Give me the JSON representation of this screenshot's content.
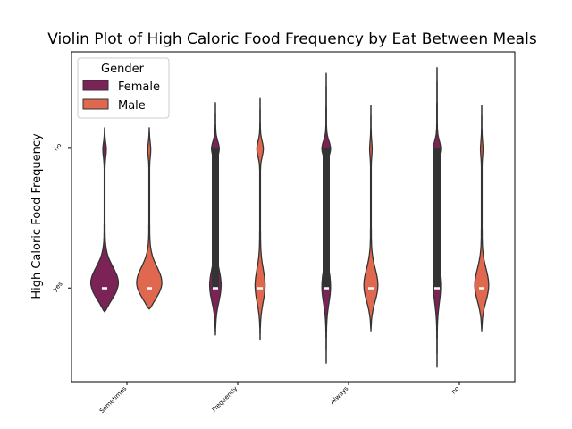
{
  "chart_data": {
    "type": "violin",
    "title": "Violin Plot of High Caloric Food Frequency by Eat Between Meals",
    "xlabel": "",
    "ylabel": "High Caloric Food Frequency",
    "categories": [
      "Sometimes",
      "Frequently",
      "Always",
      "no"
    ],
    "y_categories": [
      "no",
      "yes"
    ],
    "legend": {
      "title": "Gender",
      "placement": "top-left",
      "entries": [
        "Female",
        "Male"
      ]
    },
    "colors": {
      "Female": "#7b2357",
      "Male": "#e0684e",
      "edge": "#333333"
    },
    "series": [
      {
        "name": "Female",
        "violins": [
          {
            "category": "Sometimes",
            "y_min": -0.17,
            "y_max": 1.15,
            "median": 0,
            "q1": 0,
            "q3": 0,
            "peak_no": 0.12,
            "peak_yes": 1.0
          },
          {
            "category": "Frequently",
            "y_min": -0.34,
            "y_max": 1.33,
            "median": 0,
            "q1": 0,
            "q3": 1.0,
            "peak_no": 0.22,
            "peak_yes": 0.33
          },
          {
            "category": "Always",
            "y_min": -0.54,
            "y_max": 1.54,
            "median": 0,
            "q1": 0,
            "q3": 1.0,
            "peak_no": 0.22,
            "peak_yes": 0.22
          },
          {
            "category": "no",
            "y_min": -0.57,
            "y_max": 1.58,
            "median": 0,
            "q1": 0,
            "q3": 1.0,
            "peak_no": 0.18,
            "peak_yes": 0.18
          }
        ]
      },
      {
        "name": "Male",
        "violins": [
          {
            "category": "Sometimes",
            "y_min": -0.15,
            "y_max": 1.15,
            "median": 0,
            "q1": 0,
            "q3": 0,
            "peak_no": 0.1,
            "peak_yes": 0.95
          },
          {
            "category": "Frequently",
            "y_min": -0.37,
            "y_max": 1.36,
            "median": 0,
            "q1": 0,
            "q3": 0,
            "peak_no": 0.18,
            "peak_yes": 0.28
          },
          {
            "category": "Always",
            "y_min": -0.31,
            "y_max": 1.31,
            "median": 0,
            "q1": 0,
            "q3": 0,
            "peak_no": 0.06,
            "peak_yes": 0.42
          },
          {
            "category": "no",
            "y_min": -0.31,
            "y_max": 1.31,
            "median": 0,
            "q1": 0,
            "q3": 0,
            "peak_no": 0.06,
            "peak_yes": 0.42
          }
        ]
      }
    ],
    "ylim": [
      -0.67,
      1.69
    ],
    "grid": false
  }
}
